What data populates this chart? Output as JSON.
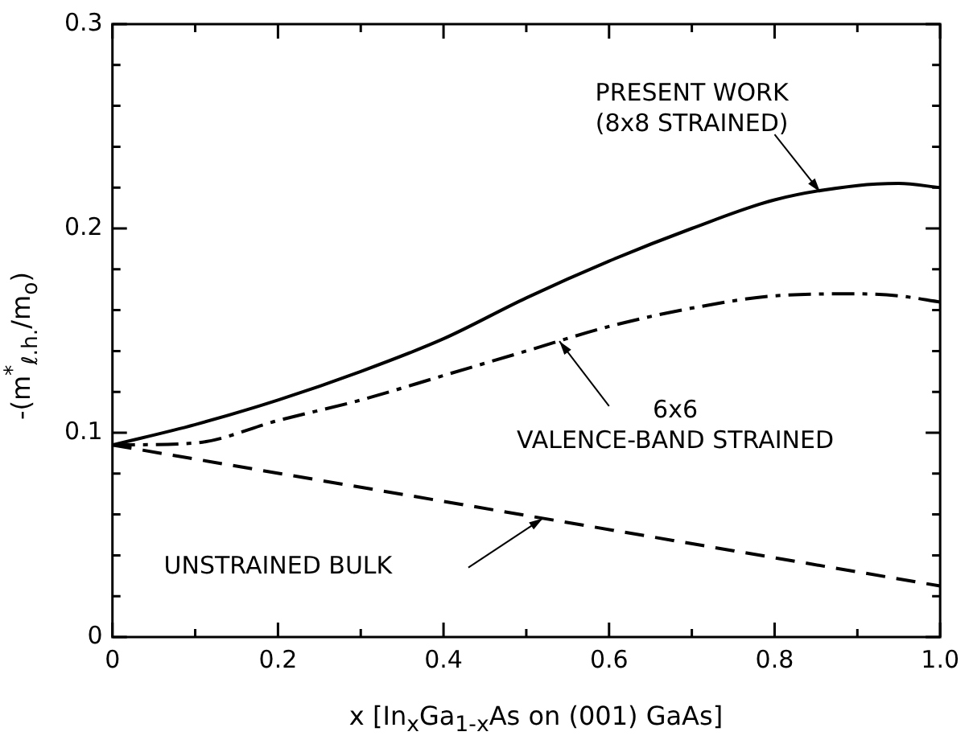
{
  "chart_data": {
    "type": "line",
    "xlabel": "x [In$_{x}$Ga$_{1-x}$As on (001) GaAs]",
    "ylabel": "-(m$^{*}$$_{ℓ.h.}$/m$_{o}$)",
    "x": [
      0,
      0.1,
      0.2,
      0.3,
      0.4,
      0.5,
      0.6,
      0.7,
      0.8,
      0.9,
      0.95,
      1.0
    ],
    "series": [
      {
        "name": "PRESENT WORK (8x8 STRAINED)",
        "color": "#000000",
        "line_style": "solid",
        "values": [
          0.094,
          0.104,
          0.116,
          0.13,
          0.146,
          0.166,
          0.184,
          0.2,
          0.214,
          0.221,
          0.222,
          0.22
        ]
      },
      {
        "name": "6x6 VALENCE-BAND STRAINED",
        "color": "#000000",
        "line_style": "dashdot",
        "values": [
          0.094,
          0.095,
          0.106,
          0.116,
          0.128,
          0.14,
          0.152,
          0.161,
          0.167,
          0.168,
          0.167,
          0.164
        ]
      },
      {
        "name": "UNSTRAINED BULK",
        "color": "#000000",
        "line_style": "dashed",
        "x": [
          0,
          1.0
        ],
        "values": [
          0.094,
          0.025
        ]
      }
    ],
    "xlim": [
      0,
      1.0
    ],
    "ylim": [
      0,
      0.3
    ],
    "xticks": [
      0,
      {
        "value": 0.1,
        "label": null
      },
      0.2,
      {
        "value": 0.3,
        "label": null
      },
      0.4,
      {
        "value": 0.5,
        "label": null
      },
      0.6,
      {
        "value": 0.7,
        "label": null
      },
      0.8,
      {
        "value": 0.9,
        "label": null
      },
      {
        "value": 1.0,
        "label": "1.0"
      }
    ],
    "yticks": [
      0,
      {
        "value": 0.02,
        "label": null
      },
      {
        "value": 0.04,
        "label": null
      },
      {
        "value": 0.06,
        "label": null
      },
      {
        "value": 0.08,
        "label": null
      },
      0.1,
      {
        "value": 0.12,
        "label": null
      },
      {
        "value": 0.14,
        "label": null
      },
      {
        "value": 0.16,
        "label": null
      },
      {
        "value": 0.18,
        "label": null
      },
      0.2,
      {
        "value": 0.22,
        "label": null
      },
      {
        "value": 0.24,
        "label": null
      },
      {
        "value": 0.26,
        "label": null
      },
      {
        "value": 0.28,
        "label": null
      },
      0.3
    ],
    "grid": false,
    "legend": false,
    "marker": "none"
  }
}
